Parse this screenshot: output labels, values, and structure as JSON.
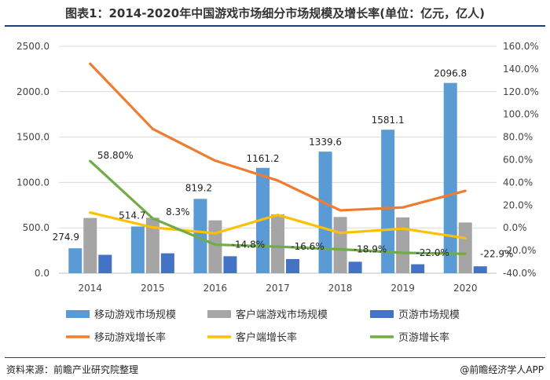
{
  "title": "图表1：2014-2020年中国游戏市场细分市场规模及增长率(单位：亿元，亿人)",
  "source": "资料来源：前瞻产业研究院整理",
  "brand": "@前瞻经济学人APP",
  "chart_data": {
    "type": "bar",
    "categories": [
      "2014",
      "2015",
      "2016",
      "2017",
      "2018",
      "2019",
      "2020"
    ],
    "left_axis": {
      "ylim": [
        0,
        2500
      ],
      "ticks": [
        "0.0",
        "500.0",
        "1000.0",
        "1500.0",
        "2000.0",
        "2500.0"
      ]
    },
    "right_axis": {
      "ylim": [
        -40,
        160
      ],
      "ticks": [
        "-40.0%",
        "-20.0%",
        "0.0%",
        "20.0%",
        "40.0%",
        "60.0%",
        "80.0%",
        "100.0%",
        "120.0%",
        "140.0%",
        "160.0%"
      ]
    },
    "bar_series": [
      {
        "name": "移动游戏市场规模",
        "color": "#5b9bd5",
        "values": [
          274.9,
          514.7,
          819.2,
          1161.2,
          1339.6,
          1581.1,
          2096.8
        ],
        "labels": [
          "274.9",
          "514.7",
          "819.2",
          "1161.2",
          "1339.6",
          "1581.1",
          "2096.8"
        ]
      },
      {
        "name": "客户端游戏市场规模",
        "color": "#a5a5a5",
        "values": [
          608.9,
          611.6,
          582.5,
          648.6,
          619.6,
          615.1,
          559.2
        ]
      },
      {
        "name": "页游市场规模",
        "color": "#4472c4",
        "values": [
          202.7,
          219.6,
          187.1,
          156.0,
          126.5,
          98.7,
          76.1
        ]
      }
    ],
    "line_series": [
      {
        "name": "移动游戏增长率",
        "color": "#ed7d31",
        "values": [
          144.6,
          87.2,
          59.2,
          41.7,
          15.4,
          18.0,
          32.6
        ]
      },
      {
        "name": "客户端增长率",
        "color": "#ffc000",
        "values": [
          13.5,
          0.4,
          -4.8,
          11.4,
          -4.5,
          -0.7,
          -9.1
        ]
      },
      {
        "name": "页游增长率",
        "color": "#70ad47",
        "values": [
          58.8,
          8.3,
          -14.8,
          -16.6,
          -18.9,
          -22.0,
          -22.9
        ],
        "labels": [
          "58.80%",
          "8.3%",
          "-14.8%",
          "-16.6%",
          "-18.9%",
          "-22.0%",
          "-22.9%"
        ]
      }
    ],
    "legend": [
      "移动游戏市场规模",
      "客户端游戏市场规模",
      "页游市场规模",
      "移动游戏增长率",
      "客户端增长率",
      "页游增长率"
    ]
  }
}
